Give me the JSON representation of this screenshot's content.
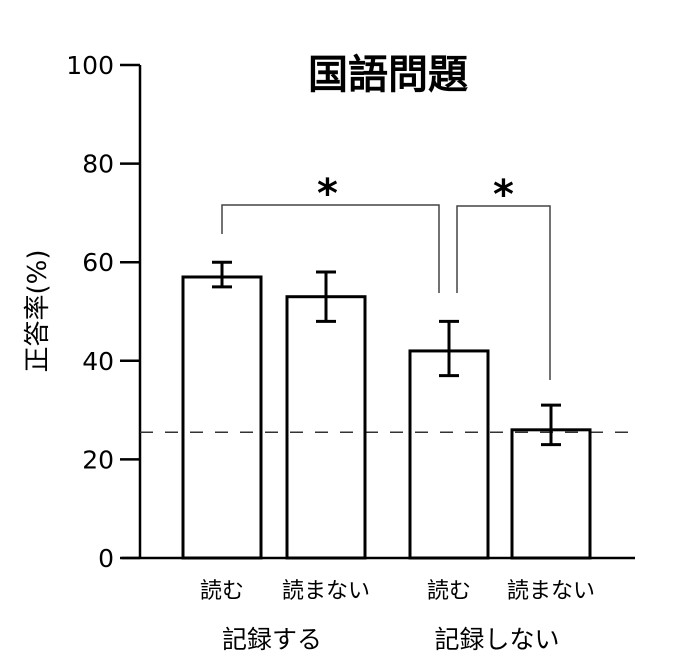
{
  "chart_data": {
    "type": "bar",
    "title": "国語問題",
    "xlabel": "",
    "ylabel": "正答率(%)",
    "ylim": [
      0,
      100
    ],
    "yticks": [
      0,
      20,
      40,
      60,
      80,
      100
    ],
    "grid": false,
    "legend": null,
    "categories": [
      "読む",
      "読まない",
      "読む",
      "読まない"
    ],
    "groups": [
      {
        "label": "記録する",
        "categories": [
          "読む",
          "読まない"
        ]
      },
      {
        "label": "記録しない",
        "categories": [
          "読む",
          "読まない"
        ]
      }
    ],
    "values": [
      57,
      53,
      42,
      26
    ],
    "error_bars": [
      {
        "low": 55,
        "high": 60
      },
      {
        "low": 48,
        "high": 58
      },
      {
        "low": 37,
        "high": 48
      },
      {
        "low": 23,
        "high": 31
      }
    ],
    "reference_line": {
      "value": 25.5,
      "style": "dashed",
      "description": "chance level"
    },
    "annotations": [
      {
        "type": "significance",
        "label": "*",
        "from_bar": 0,
        "to_bar": 2
      },
      {
        "type": "significance",
        "label": "*",
        "from_bar": 2,
        "to_bar": 3
      }
    ]
  },
  "colors": {
    "bar_fill": "#ffffff",
    "bar_stroke": "#000000",
    "axis": "#000000",
    "dashed_line": "#333333"
  }
}
